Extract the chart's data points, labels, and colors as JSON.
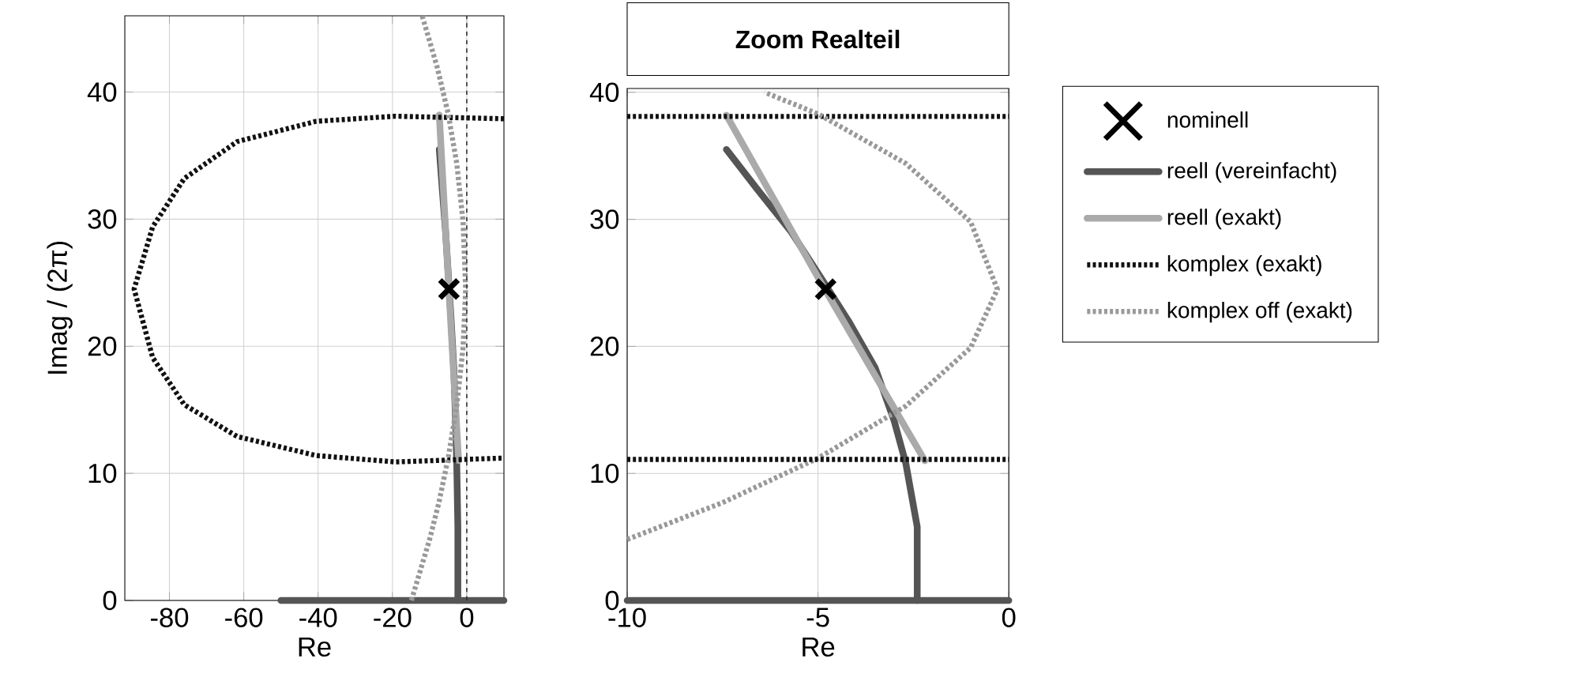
{
  "chart_data": [
    {
      "type": "line",
      "xlabel": "Re",
      "ylabel": "Imag / (2π)",
      "xlim": [
        -92,
        10
      ],
      "ylim": [
        0,
        46
      ],
      "xticks": [
        -80,
        -60,
        -40,
        -20,
        0
      ],
      "yticks": [
        0,
        10,
        20,
        30,
        40
      ],
      "grid": true,
      "legend": false,
      "ref_lines": [
        {
          "axis": "x",
          "value": 0,
          "color": "#333333",
          "line_style": "dashed"
        }
      ],
      "series": [
        {
          "type": "scatter",
          "marker": "cross",
          "color": "#000000",
          "x": [
            -4.8
          ],
          "values": [
            24.5
          ]
        },
        {
          "line_style": "solid",
          "color": "#555555",
          "x": [
            -2.4,
            -2.4,
            -2.7,
            -3.0,
            -3.5,
            -4.2,
            -4.9,
            -5.7,
            -6.6,
            -7.4
          ],
          "values": [
            0,
            5.8,
            10.8,
            14.1,
            18.3,
            22.0,
            25.3,
            29.0,
            32.4,
            35.5
          ]
        },
        {
          "line_style": "solid",
          "color": "#555555",
          "x": [
            -50,
            -25,
            10
          ],
          "values": [
            0,
            0,
            0
          ]
        },
        {
          "line_style": "solid",
          "color": "#aaaaaa",
          "x": [
            -2.2,
            -4.9,
            -7.4
          ],
          "values": [
            11.0,
            24.9,
            38.2
          ]
        },
        {
          "line_style": "dotted",
          "color": "#111111",
          "x": [
            10,
            -19.2,
            -40.5,
            -61.8,
            -76,
            -84.5,
            -89.5,
            -84.5,
            -76,
            -61.8,
            -40.5,
            -19.2,
            10
          ],
          "values": [
            37.9,
            38.1,
            37.7,
            36.1,
            33.2,
            29.4,
            24.5,
            19.1,
            15.4,
            12.9,
            11.4,
            10.9,
            11.2
          ]
        },
        {
          "line_style": "dotted",
          "color": "#999999",
          "x": [
            -14.9,
            -10,
            -7.5,
            -5,
            -2.7,
            -1,
            -0.3,
            -1,
            -2.7,
            -5,
            -8,
            -12
          ],
          "values": [
            0,
            4.8,
            7.7,
            11.2,
            15.3,
            19.9,
            24.5,
            29.8,
            34.4,
            38.3,
            42,
            46
          ]
        }
      ]
    },
    {
      "type": "line",
      "title": "Zoom Realteil",
      "xlabel": "Re",
      "xlim": [
        -10,
        0
      ],
      "ylim": [
        0,
        40.3
      ],
      "xticks": [
        -10,
        -5,
        0
      ],
      "yticks": [
        0,
        10,
        20,
        30,
        40
      ],
      "grid": true,
      "legend": "right",
      "series": [
        {
          "type": "scatter",
          "name": "nominell",
          "marker": "cross",
          "color": "#000000",
          "x": [
            -4.8
          ],
          "values": [
            24.5
          ]
        },
        {
          "name": "reell (vereinfacht)",
          "line_style": "solid",
          "color": "#555555",
          "x": [
            -2.4,
            -2.4,
            -2.7,
            -3.0,
            -3.5,
            -4.2,
            -4.9,
            -5.7,
            -6.6,
            -7.4
          ],
          "values": [
            0,
            5.8,
            10.8,
            14.1,
            18.3,
            22.0,
            25.3,
            29.0,
            32.4,
            35.5
          ]
        },
        {
          "name": "reell (exakt)",
          "line_style": "solid",
          "color": "#aaaaaa",
          "x": [
            -2.2,
            -4.9,
            -7.4
          ],
          "values": [
            11.0,
            24.9,
            38.2
          ]
        },
        {
          "name": "komplex (exakt)",
          "line_style": "dotted",
          "color": "#111111",
          "x": [
            -10,
            -5,
            0
          ],
          "values": [
            38.1,
            38.1,
            38.1
          ]
        },
        {
          "name": "komplex off (exakt)",
          "line_style": "dotted",
          "color": "#999999",
          "x": [
            -10,
            -7.5,
            -5,
            -2.7,
            -1,
            -0.3,
            -1,
            -2.7,
            -5,
            -6.4
          ],
          "values": [
            4.8,
            7.7,
            11.2,
            15.3,
            19.9,
            24.5,
            29.8,
            34.4,
            38.3,
            40
          ]
        },
        {
          "line_style": "solid",
          "color": "#555555",
          "x": [
            -10,
            -5,
            0
          ],
          "values": [
            0,
            0,
            0
          ]
        },
        {
          "line_style": "dotted",
          "color": "#111111",
          "x": [
            -10,
            -5,
            0
          ],
          "values": [
            11.1,
            11.1,
            11.1
          ]
        }
      ]
    }
  ]
}
